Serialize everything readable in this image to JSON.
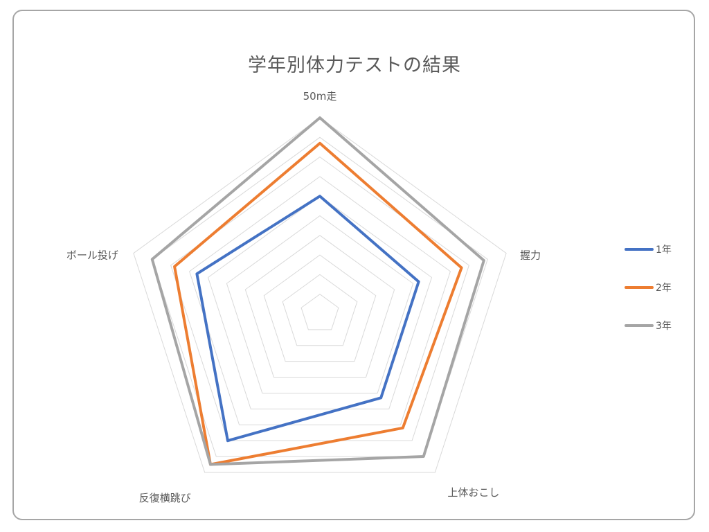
{
  "chart_data": {
    "type": "radar",
    "title": "学年別体力テストの結果",
    "axes": [
      "50m走",
      "握力",
      "上体おこし",
      "反復横跳び",
      "ボール投げ"
    ],
    "rmax": 10,
    "gridlines": [
      1,
      2,
      3,
      4,
      5,
      6,
      7,
      8,
      9,
      10
    ],
    "grid": true,
    "legend_position": "right",
    "series": [
      {
        "name": "1年",
        "values": [
          6.0,
          5.3,
          5.3,
          8.0,
          6.6
        ],
        "color": "#4472c4"
      },
      {
        "name": "2年",
        "values": [
          8.7,
          7.6,
          7.2,
          9.5,
          7.8
        ],
        "color": "#ed7d31"
      },
      {
        "name": "3年",
        "values": [
          10.0,
          8.8,
          9.0,
          9.5,
          9.0
        ],
        "color": "#a5a5a5"
      }
    ]
  },
  "colors": {
    "grid": "#d9d9d9",
    "text": "#595959",
    "frame": "#a6a6a6"
  }
}
